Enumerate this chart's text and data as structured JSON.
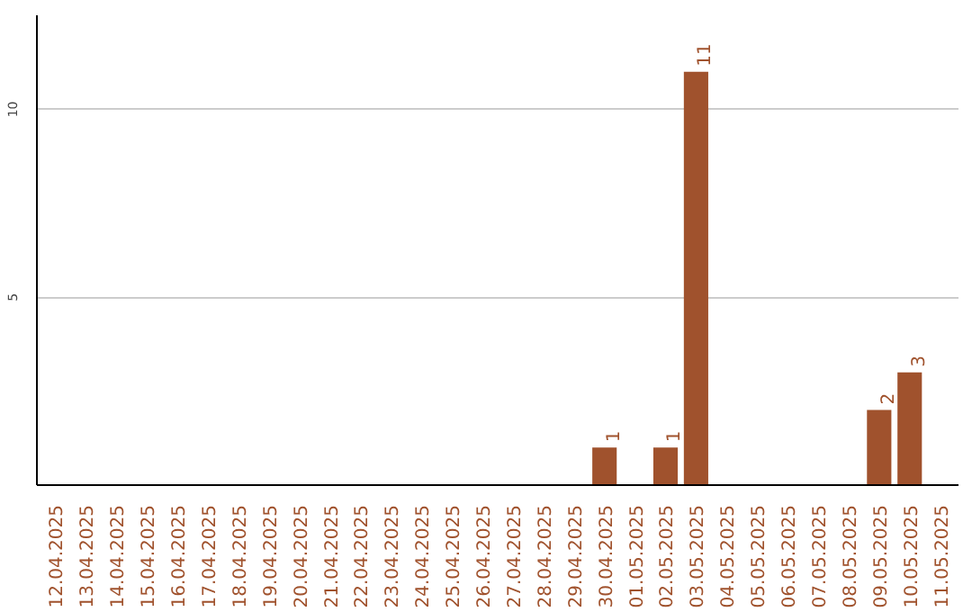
{
  "chart_data": {
    "type": "bar",
    "categories": [
      "12.04.2025",
      "13.04.2025",
      "14.04.2025",
      "15.04.2025",
      "16.04.2025",
      "17.04.2025",
      "18.04.2025",
      "19.04.2025",
      "20.04.2025",
      "21.04.2025",
      "22.04.2025",
      "23.04.2025",
      "24.04.2025",
      "25.04.2025",
      "26.04.2025",
      "27.04.2025",
      "28.04.2025",
      "29.04.2025",
      "30.04.2025",
      "01.05.2025",
      "02.05.2025",
      "03.05.2025",
      "04.05.2025",
      "05.05.2025",
      "06.05.2025",
      "07.05.2025",
      "08.05.2025",
      "09.05.2025",
      "10.05.2025",
      "11.05.2025"
    ],
    "values": [
      0,
      0,
      0,
      0,
      0,
      0,
      0,
      0,
      0,
      0,
      0,
      0,
      0,
      0,
      0,
      0,
      0,
      0,
      1,
      0,
      1,
      11,
      0,
      0,
      0,
      0,
      0,
      2,
      3,
      0
    ],
    "value_labels": [
      null,
      null,
      null,
      null,
      null,
      null,
      null,
      null,
      null,
      null,
      null,
      null,
      null,
      null,
      null,
      null,
      null,
      null,
      "1",
      null,
      "1",
      "11",
      null,
      null,
      null,
      null,
      null,
      "2",
      "3",
      null
    ],
    "color": "#a0522d",
    "ylim": [
      0,
      12.5
    ],
    "yticks": [
      5,
      10
    ],
    "grid": "y"
  }
}
